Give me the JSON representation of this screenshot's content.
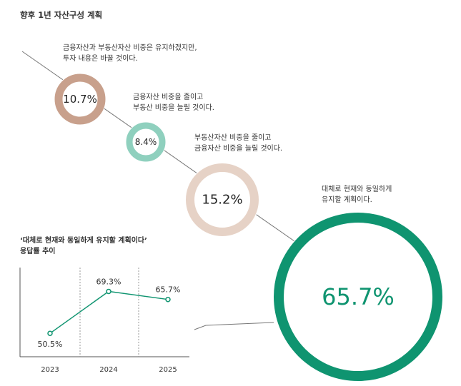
{
  "title": "향후 1년 자산구성 계획",
  "rings": [
    {
      "value_label": "10.7%",
      "value": 10.7,
      "color": "#c8a08c",
      "desc": [
        "금융자산과 부동산자산 비중은 유지하겠지만,",
        "투자 내용은 바꿀 것이다."
      ]
    },
    {
      "value_label": "8.4%",
      "value": 8.4,
      "color": "#8fd0be",
      "desc": [
        "금융자산 비중을 줄이고",
        "부동산 비중을 늘릴 것이다."
      ]
    },
    {
      "value_label": "15.2%",
      "value": 15.2,
      "color": "#e6d2c6",
      "desc": [
        "부동산자산 비중을 줄이고",
        "금융자산 비중을 늘릴 것이다."
      ]
    },
    {
      "value_label": "65.7%",
      "value": 65.7,
      "color": "#0f9470",
      "desc": [
        "대체로 현재와 동일하게",
        "유지할 계획이다."
      ]
    }
  ],
  "chart_data": {
    "type": "line",
    "title": [
      "‘대체로 현재와 동일하게 유지할 계획이다’",
      "응답률 추이"
    ],
    "x": [
      "2023",
      "2024",
      "2025"
    ],
    "series": [
      {
        "values": [
          50.5,
          69.3,
          65.7
        ]
      }
    ],
    "data_labels": [
      "50.5%",
      "69.3%",
      "65.7%"
    ],
    "ylim": [
      40,
      80
    ],
    "grid": "vertical dashed separators",
    "color": "#0f9470"
  }
}
